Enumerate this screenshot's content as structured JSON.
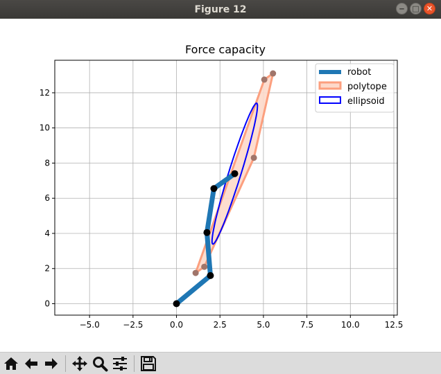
{
  "window": {
    "title": "Figure 12",
    "buttons": {
      "minimize": "‒",
      "maximize": "□",
      "close": "✕"
    }
  },
  "toolbar": {
    "buttons": [
      {
        "name": "home-button",
        "icon": "home-icon"
      },
      {
        "name": "back-button",
        "icon": "arrow-left-icon"
      },
      {
        "name": "forward-button",
        "icon": "arrow-right-icon"
      },
      {
        "name": "pan-button",
        "icon": "move-icon"
      },
      {
        "name": "zoom-button",
        "icon": "magnifier-icon"
      },
      {
        "name": "configure-subplots-button",
        "icon": "sliders-icon"
      },
      {
        "name": "save-button",
        "icon": "floppy-icon"
      }
    ]
  },
  "chart_data": {
    "type": "line",
    "title": "Force capacity",
    "xlabel": "",
    "ylabel": "",
    "xlim": [
      -7.0,
      12.7
    ],
    "ylim": [
      -0.65,
      13.85
    ],
    "xticks": [
      -5.0,
      -2.5,
      0.0,
      2.5,
      5.0,
      7.5,
      10.0,
      12.5
    ],
    "xtick_labels": [
      "−5.0",
      "−2.5",
      "0.0",
      "2.5",
      "5.0",
      "7.5",
      "10.0",
      "12.5"
    ],
    "yticks": [
      0,
      2,
      4,
      6,
      8,
      10,
      12
    ],
    "ytick_labels": [
      "0",
      "2",
      "4",
      "6",
      "8",
      "10",
      "12"
    ],
    "grid": true,
    "legend_position": "top-right",
    "series": [
      {
        "name": "robot",
        "kind": "line",
        "color": "#1f77b4",
        "points": [
          [
            0.0,
            0.0
          ],
          [
            1.95,
            1.6
          ],
          [
            1.75,
            4.05
          ],
          [
            2.15,
            6.55
          ],
          [
            3.35,
            7.4
          ]
        ]
      },
      {
        "name": "polytope",
        "kind": "polygon",
        "edge_color": "#fc9f7e",
        "fill_color": "#fdd9ca",
        "points": [
          [
            1.1,
            1.75
          ],
          [
            1.6,
            2.1
          ],
          [
            4.45,
            8.3
          ],
          [
            5.55,
            13.1
          ],
          [
            5.05,
            12.75
          ],
          [
            1.1,
            1.75
          ]
        ]
      },
      {
        "name": "ellipsoid",
        "kind": "ellipse",
        "color": "#0000ff",
        "center": [
          3.35,
          7.4
        ],
        "semi_axes": [
          4.2,
          0.35
        ],
        "angle_deg": 72.5
      }
    ],
    "joints": [
      [
        0.0,
        0.0
      ],
      [
        1.95,
        1.6
      ],
      [
        1.75,
        4.05
      ],
      [
        2.15,
        6.55
      ],
      [
        3.35,
        7.4
      ]
    ],
    "vertices": [
      [
        1.1,
        1.75
      ],
      [
        1.6,
        2.1
      ],
      [
        4.45,
        8.3
      ],
      [
        5.55,
        13.1
      ],
      [
        5.05,
        12.75
      ]
    ]
  }
}
